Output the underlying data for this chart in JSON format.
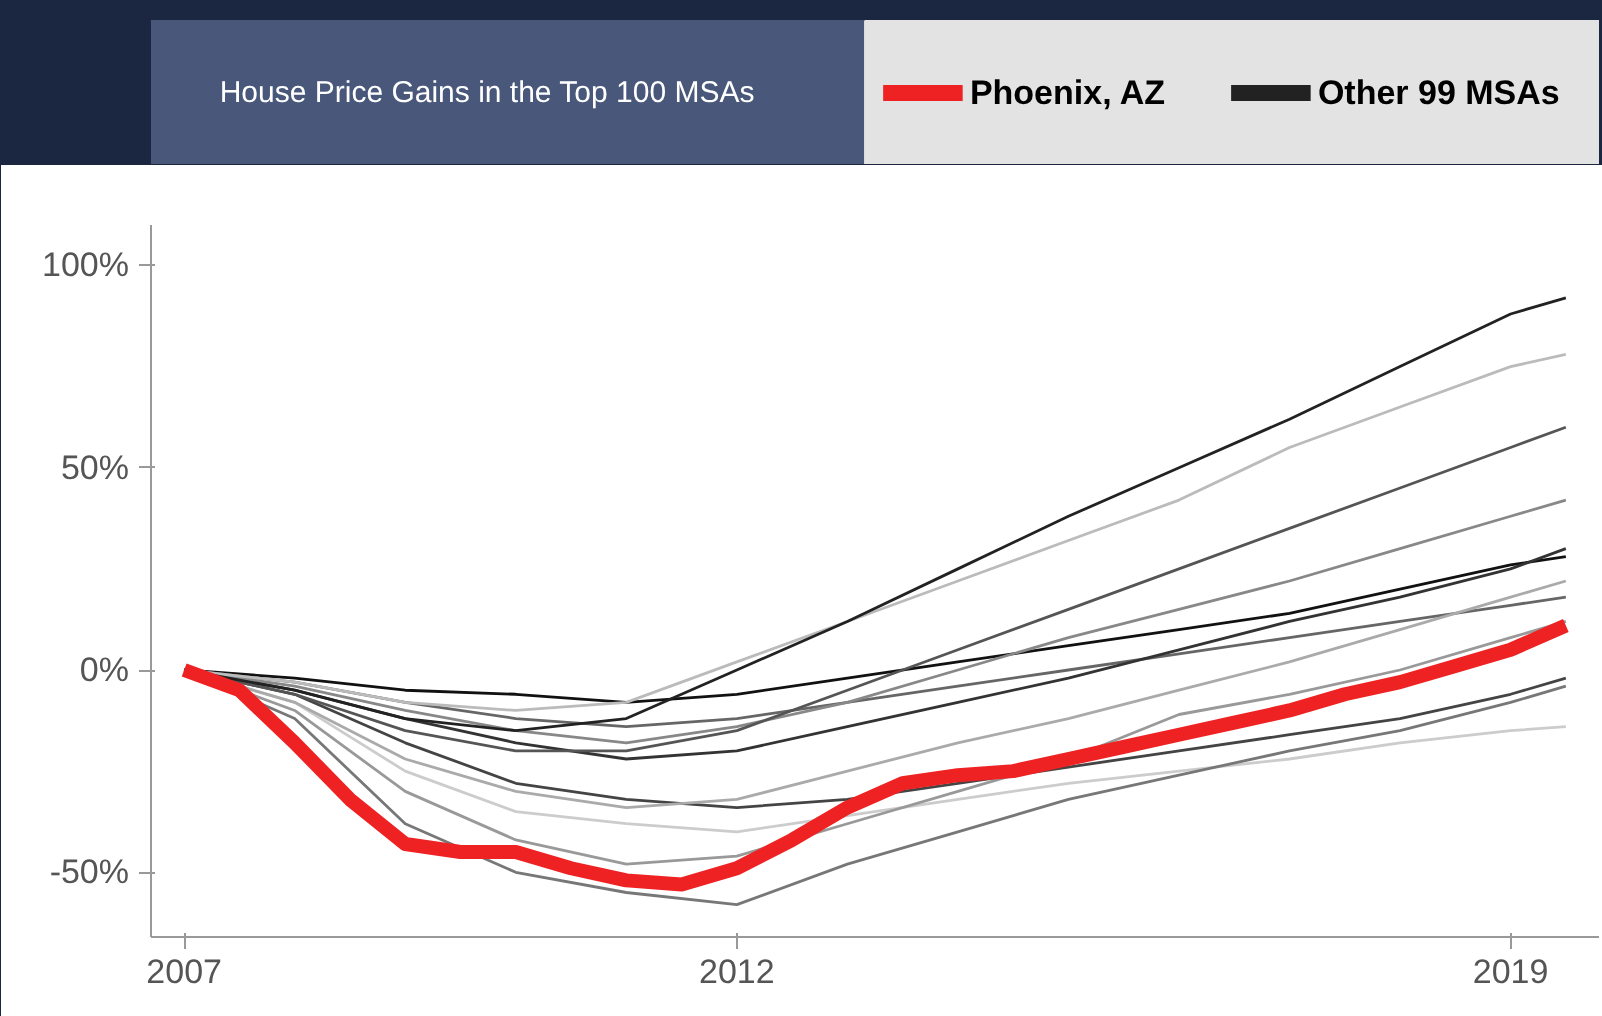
{
  "chart_data": {
    "type": "line",
    "title": "House Price Gains in the Top 100 MSAs",
    "legend": "top",
    "grid": false,
    "line_style": "solid",
    "marker": "none",
    "x": [
      2007,
      2008,
      2009,
      2010,
      2011,
      2012,
      2013,
      2014,
      2015,
      2016,
      2017,
      2018,
      2019,
      2019.5
    ],
    "xlim": [
      2006.7,
      2019.8
    ],
    "xticks": [
      2007,
      2012,
      2019
    ],
    "ylim": [
      -66,
      110
    ],
    "yticks": [
      {
        "value": -50,
        "label": "-50%"
      },
      {
        "value": 0,
        "label": "0%"
      },
      {
        "value": 50,
        "label": "50%"
      },
      {
        "value": 100,
        "label": "100%"
      }
    ],
    "series": [
      {
        "name": "Phoenix, AZ",
        "color": "#ee2222",
        "x": [
          2007,
          2007.5,
          2008,
          2008.5,
          2009,
          2009.5,
          2010,
          2010.5,
          2011,
          2011.5,
          2012,
          2012.5,
          2013,
          2013.5,
          2014,
          2014.5,
          2015,
          2015.5,
          2016,
          2016.5,
          2017,
          2017.5,
          2018,
          2018.5,
          2019,
          2019.5
        ],
        "values": [
          0,
          -5,
          -18,
          -32,
          -43,
          -45,
          -45,
          -49,
          -52,
          -53,
          -49,
          -42,
          -34,
          -28,
          -26,
          -25,
          -22,
          -19,
          -16,
          -13,
          -10,
          -6,
          -3,
          1,
          5,
          11
        ]
      },
      {
        "name": "Other 99 MSAs",
        "color": "#222222",
        "values": [
          0,
          -5,
          -12,
          -15,
          -12,
          0,
          12,
          25,
          38,
          50,
          62,
          75,
          88,
          92
        ]
      },
      {
        "color": "#bbbbbb",
        "values": [
          0,
          -3,
          -8,
          -10,
          -8,
          2,
          12,
          22,
          32,
          42,
          55,
          65,
          75,
          78
        ]
      },
      {
        "color": "#555555",
        "values": [
          0,
          -6,
          -15,
          -20,
          -20,
          -15,
          -5,
          5,
          15,
          25,
          35,
          45,
          55,
          60
        ]
      },
      {
        "color": "#888888",
        "values": [
          0,
          -4,
          -10,
          -15,
          -18,
          -14,
          -8,
          0,
          8,
          15,
          22,
          30,
          38,
          42
        ]
      },
      {
        "color": "#333333",
        "values": [
          0,
          -5,
          -12,
          -18,
          -22,
          -20,
          -14,
          -8,
          -2,
          5,
          12,
          18,
          25,
          30
        ]
      },
      {
        "color": "#aaaaaa",
        "values": [
          0,
          -8,
          -22,
          -30,
          -34,
          -32,
          -25,
          -18,
          -12,
          -5,
          2,
          10,
          18,
          22
        ]
      },
      {
        "color": "#666666",
        "values": [
          0,
          -3,
          -8,
          -12,
          -14,
          -12,
          -8,
          -4,
          0,
          4,
          8,
          12,
          16,
          18
        ]
      },
      {
        "color": "#999999",
        "values": [
          0,
          -10,
          -30,
          -42,
          -48,
          -46,
          -38,
          -30,
          -22,
          -11,
          -6,
          0,
          8,
          12
        ]
      },
      {
        "color": "#777777",
        "values": [
          0,
          -12,
          -38,
          -50,
          -55,
          -58,
          -48,
          -40,
          -32,
          -26,
          -20,
          -15,
          -8,
          -4
        ]
      },
      {
        "color": "#444444",
        "values": [
          0,
          -6,
          -18,
          -28,
          -32,
          -34,
          -32,
          -28,
          -24,
          -20,
          -16,
          -12,
          -6,
          -2
        ]
      },
      {
        "color": "#cccccc",
        "values": [
          0,
          -8,
          -25,
          -35,
          -38,
          -40,
          -36,
          -32,
          -28,
          -25,
          -22,
          -18,
          -15,
          -14
        ]
      },
      {
        "color": "#111111",
        "values": [
          0,
          -2,
          -5,
          -6,
          -8,
          -6,
          -2,
          2,
          6,
          10,
          14,
          20,
          26,
          28
        ]
      }
    ]
  }
}
